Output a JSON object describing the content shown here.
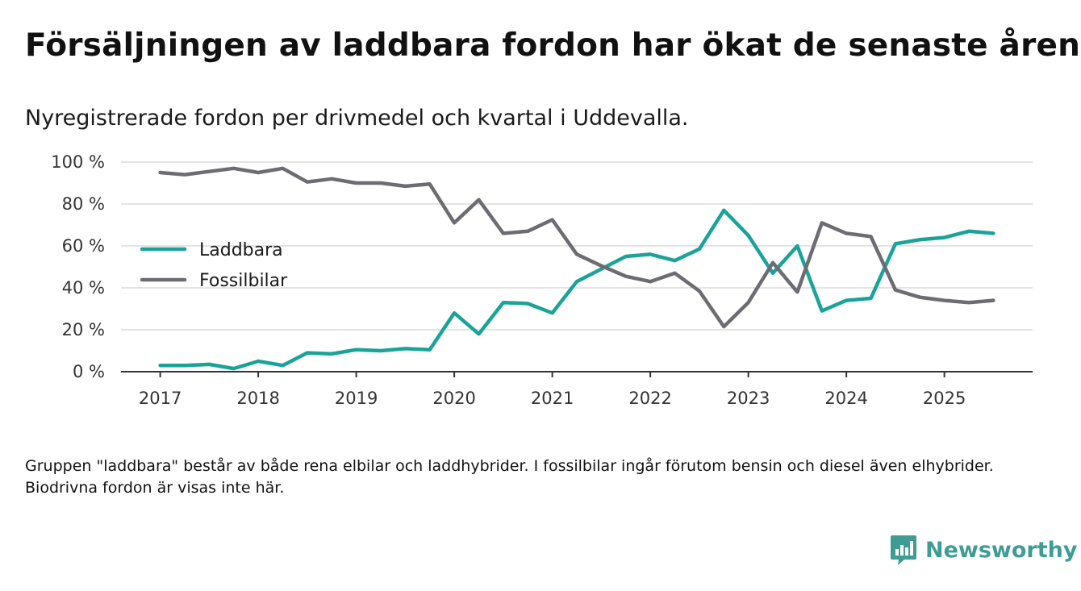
{
  "header": {
    "title": "Försäljningen av laddbara fordon har ökat de senaste åren",
    "subtitle": "Nyregistrerade fordon per drivmedel och kvartal i Uddevalla."
  },
  "footer": {
    "note": "Gruppen \"laddbara\" består av både rena elbilar och laddhybrider. I fossilbilar ingår förutom bensin och diesel även elhybrider. Biodrivna fordon är visas inte här.",
    "brand": "Newsworthy",
    "brand_icon": "newsworthy-logo-icon"
  },
  "chart_data": {
    "type": "line",
    "title": "Försäljningen av laddbara fordon har ökat de senaste åren",
    "subtitle": "Nyregistrerade fordon per drivmedel och kvartal i Uddevalla.",
    "xlabel": "",
    "ylabel": "",
    "x": [
      2017.0,
      2017.25,
      2017.5,
      2017.75,
      2018.0,
      2018.25,
      2018.5,
      2018.75,
      2019.0,
      2019.25,
      2019.5,
      2019.75,
      2020.0,
      2020.25,
      2020.5,
      2020.75,
      2021.0,
      2021.25,
      2021.5,
      2021.75,
      2022.0,
      2022.25,
      2022.5,
      2022.75,
      2023.0,
      2023.25,
      2023.5,
      2023.75,
      2024.0,
      2024.25,
      2024.5,
      2024.75,
      2025.0,
      2025.25,
      2025.5
    ],
    "xlim": [
      2016.6,
      2025.9
    ],
    "ylim": [
      0,
      100
    ],
    "yticks": [
      0,
      20,
      40,
      60,
      80,
      100
    ],
    "ytick_labels": [
      "0 %",
      "20 %",
      "40 %",
      "60 %",
      "80 %",
      "100 %"
    ],
    "xticks": [
      2017,
      2018,
      2019,
      2020,
      2021,
      2022,
      2023,
      2024,
      2025
    ],
    "xtick_labels": [
      "2017",
      "2018",
      "2019",
      "2020",
      "2021",
      "2022",
      "2023",
      "2024",
      "2025"
    ],
    "grid": true,
    "legend_position": "left-middle",
    "series": [
      {
        "name": "Laddbara",
        "color": "#1aa398",
        "values": [
          3,
          3,
          3.5,
          1.5,
          5,
          3,
          9,
          8.5,
          10.5,
          10,
          11,
          10.5,
          28,
          18,
          33,
          32.5,
          28,
          43,
          49,
          55,
          56,
          53,
          58.5,
          77,
          65,
          47,
          60,
          29,
          34,
          35,
          61,
          63,
          64,
          67,
          66
        ]
      },
      {
        "name": "Fossilbilar",
        "color": "#6e6c72",
        "values": [
          95,
          94,
          95.5,
          97,
          95,
          97,
          90.5,
          92,
          90,
          90,
          88.5,
          89.5,
          71,
          82,
          66,
          67,
          72.5,
          56,
          50.5,
          45.5,
          43,
          47,
          38.5,
          21.5,
          33,
          52,
          38,
          71,
          66,
          64.5,
          39,
          35.5,
          34,
          33,
          34
        ]
      }
    ]
  }
}
